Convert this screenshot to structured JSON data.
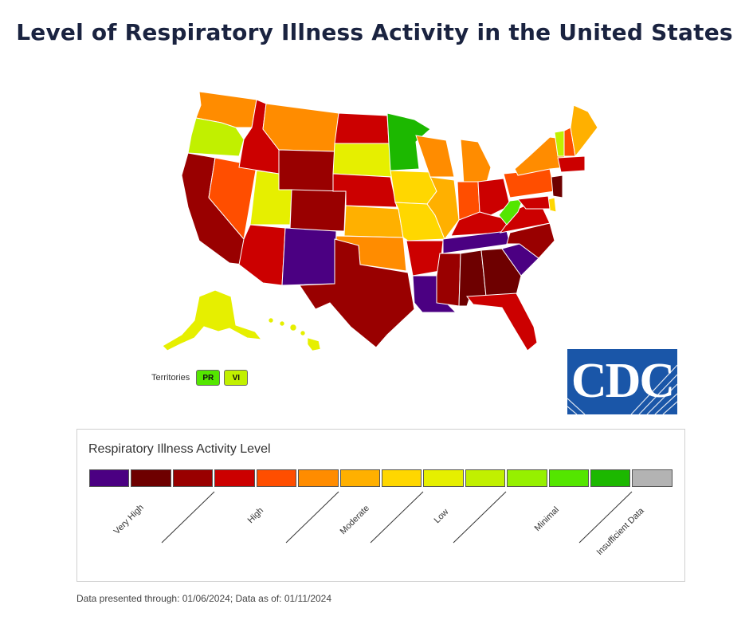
{
  "title": "Level of Respiratory Illness Activity in the United States",
  "territories": {
    "label": "Territories",
    "items": [
      {
        "code": "PR",
        "color": "#54e600"
      },
      {
        "code": "VI",
        "color": "#c1f000"
      }
    ]
  },
  "logo": {
    "text": "CDC"
  },
  "legend": {
    "title": "Respiratory Illness Activity Level",
    "colors": [
      "#4b0082",
      "#6e0000",
      "#990000",
      "#cc0000",
      "#ff4e00",
      "#ff8c00",
      "#ffb000",
      "#ffd700",
      "#e6ef00",
      "#c1f000",
      "#96f000",
      "#54e600",
      "#1cb800",
      "#b3b3b3"
    ],
    "labels": [
      "Very High",
      "High",
      "Moderate",
      "Low",
      "Minimal",
      "Insufficient Data"
    ]
  },
  "footnote": "Data presented through: 01/06/2024; Data as of: 01/11/2024",
  "states": {
    "WA": "#ff8c00",
    "OR": "#c1f000",
    "CA": "#990000",
    "NV": "#ff4e00",
    "ID": "#cc0000",
    "MT": "#ff8c00",
    "WY": "#990000",
    "UT": "#e6ef00",
    "CO": "#990000",
    "AZ": "#cc0000",
    "NM": "#4b0082",
    "ND": "#cc0000",
    "SD": "#e6ef00",
    "NE": "#cc0000",
    "KS": "#ffb000",
    "OK": "#ff8c00",
    "TX": "#990000",
    "MN": "#1cb800",
    "IA": "#ffd700",
    "MO": "#ffd700",
    "AR": "#cc0000",
    "LA": "#4b0082",
    "WI": "#ff8c00",
    "IL": "#ffb000",
    "MI": "#ff8c00",
    "IN": "#ff4e00",
    "OH": "#cc0000",
    "KY": "#cc0000",
    "TN": "#4b0082",
    "MS": "#990000",
    "AL": "#6e0000",
    "GA": "#6e0000",
    "FL": "#cc0000",
    "SC": "#4b0082",
    "NC": "#990000",
    "VA": "#cc0000",
    "WV": "#54e600",
    "PA": "#ff4e00",
    "NY": "#ff8c00",
    "ME": "#ffb000",
    "VT": "#c1f000",
    "NH": "#ff4e00",
    "MA": "#cc0000",
    "NJ": "#6e0000",
    "MD": "#cc0000",
    "DE": "#ffd700",
    "AK": "#e6ef00",
    "HI": "#e6ef00"
  }
}
